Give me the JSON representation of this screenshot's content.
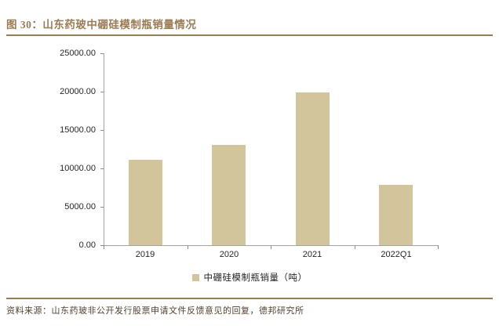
{
  "page": {
    "title": "图 30：山东药玻中硼硅模制瓶销量情况",
    "source": "资料来源：山东药玻非公开发行股票申请文件反馈意见的回复，德邦研究所"
  },
  "colors": {
    "accent": "#9B7B52",
    "bar_fill": "#D2C49B",
    "axis": "#A3A3A3",
    "tick": "#8C8C8C",
    "source_text": "#52412F",
    "label_text": "#262626"
  },
  "chart_data": {
    "type": "bar",
    "title": "山东药玻中硼硅模制瓶销量情况",
    "categories": [
      "2019",
      "2020",
      "2021",
      "2022Q1"
    ],
    "values": [
      11100,
      13100,
      19900,
      7900
    ],
    "series_name": "中硼硅模制瓶销量（吨）",
    "xlabel": "",
    "ylabel": "",
    "ylim": [
      0,
      25000
    ],
    "y_ticks": [
      0,
      5000,
      10000,
      15000,
      20000,
      25000
    ],
    "y_tick_labels": [
      "0.00",
      "5000.00",
      "10000.00",
      "15000.00",
      "20000.00",
      "25000.00"
    ],
    "grid": false,
    "legend_position": "bottom"
  }
}
